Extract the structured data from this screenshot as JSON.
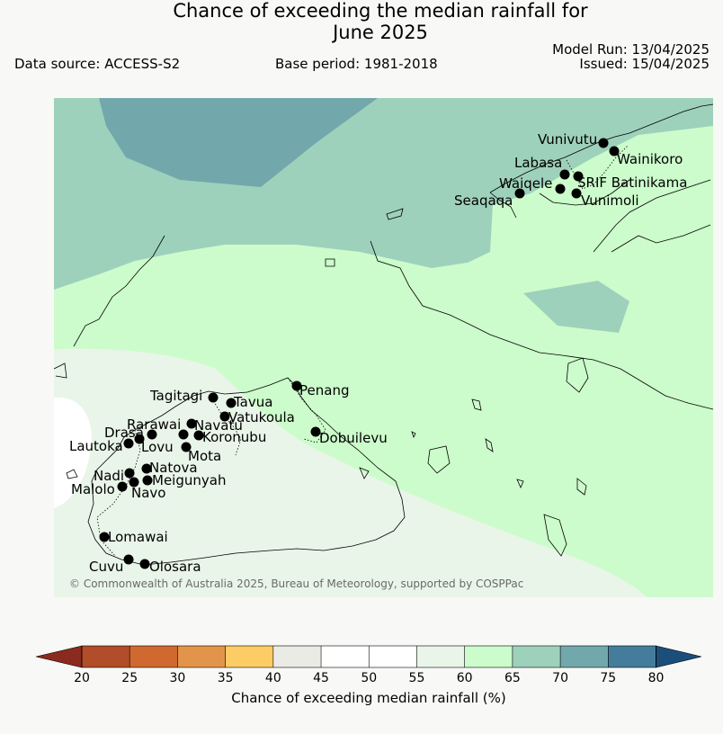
{
  "header": {
    "title_line1": "Chance of exceeding the median rainfall for",
    "title_line2": "June 2025",
    "data_source": "Data source: ACCESS-S2",
    "base_period": "Base period: 1981-2018",
    "model_run": "Model Run: 13/04/2025",
    "issued": "Issued: 15/04/2025"
  },
  "map": {
    "copyright": "© Commonwealth of Australia 2025, Bureau of Meteorology, supported by COSPPac",
    "places": [
      {
        "name": "Vunivutu"
      },
      {
        "name": "Wainikoro"
      },
      {
        "name": "Labasa"
      },
      {
        "name": "Waiqele"
      },
      {
        "name": "SRIF Batinikama"
      },
      {
        "name": "Seaqaqa"
      },
      {
        "name": "Vunimoli"
      },
      {
        "name": "Penang"
      },
      {
        "name": "Tagitagi"
      },
      {
        "name": "Tavua"
      },
      {
        "name": "Vatukoula"
      },
      {
        "name": "Rarawai"
      },
      {
        "name": "Navatu"
      },
      {
        "name": "Drasa"
      },
      {
        "name": "Koronubu"
      },
      {
        "name": "Lautoka"
      },
      {
        "name": "Lovu"
      },
      {
        "name": "Dobuilevu"
      },
      {
        "name": "Mota"
      },
      {
        "name": "Natova"
      },
      {
        "name": "Nadi"
      },
      {
        "name": "Meigunyah"
      },
      {
        "name": "Malolo"
      },
      {
        "name": "Navo"
      },
      {
        "name": "Lomawai"
      },
      {
        "name": "Cuvu"
      },
      {
        "name": "Olosara"
      }
    ]
  },
  "colorbar": {
    "label": "Chance of exceeding median rainfall (%)",
    "ticks": [
      "20",
      "25",
      "30",
      "35",
      "40",
      "45",
      "50",
      "55",
      "60",
      "65",
      "70",
      "75",
      "80"
    ],
    "colors": [
      "#b14d28",
      "#d0692f",
      "#e2944a",
      "#fdcc64",
      "#ebebe6",
      "#ffffff",
      "#ffffff",
      "#e9f5e8",
      "#ccfccb",
      "#9ed1bc",
      "#72a8ab",
      "#447d9c"
    ],
    "under_color": "#8b2a1e",
    "over_color": "#1c4e7c"
  },
  "fill_colors": {
    "c55_60": "#e9f5e8",
    "c60_65": "#ccfccb",
    "c65_70": "#9ed1bc",
    "c70_75": "#72a8ab"
  }
}
